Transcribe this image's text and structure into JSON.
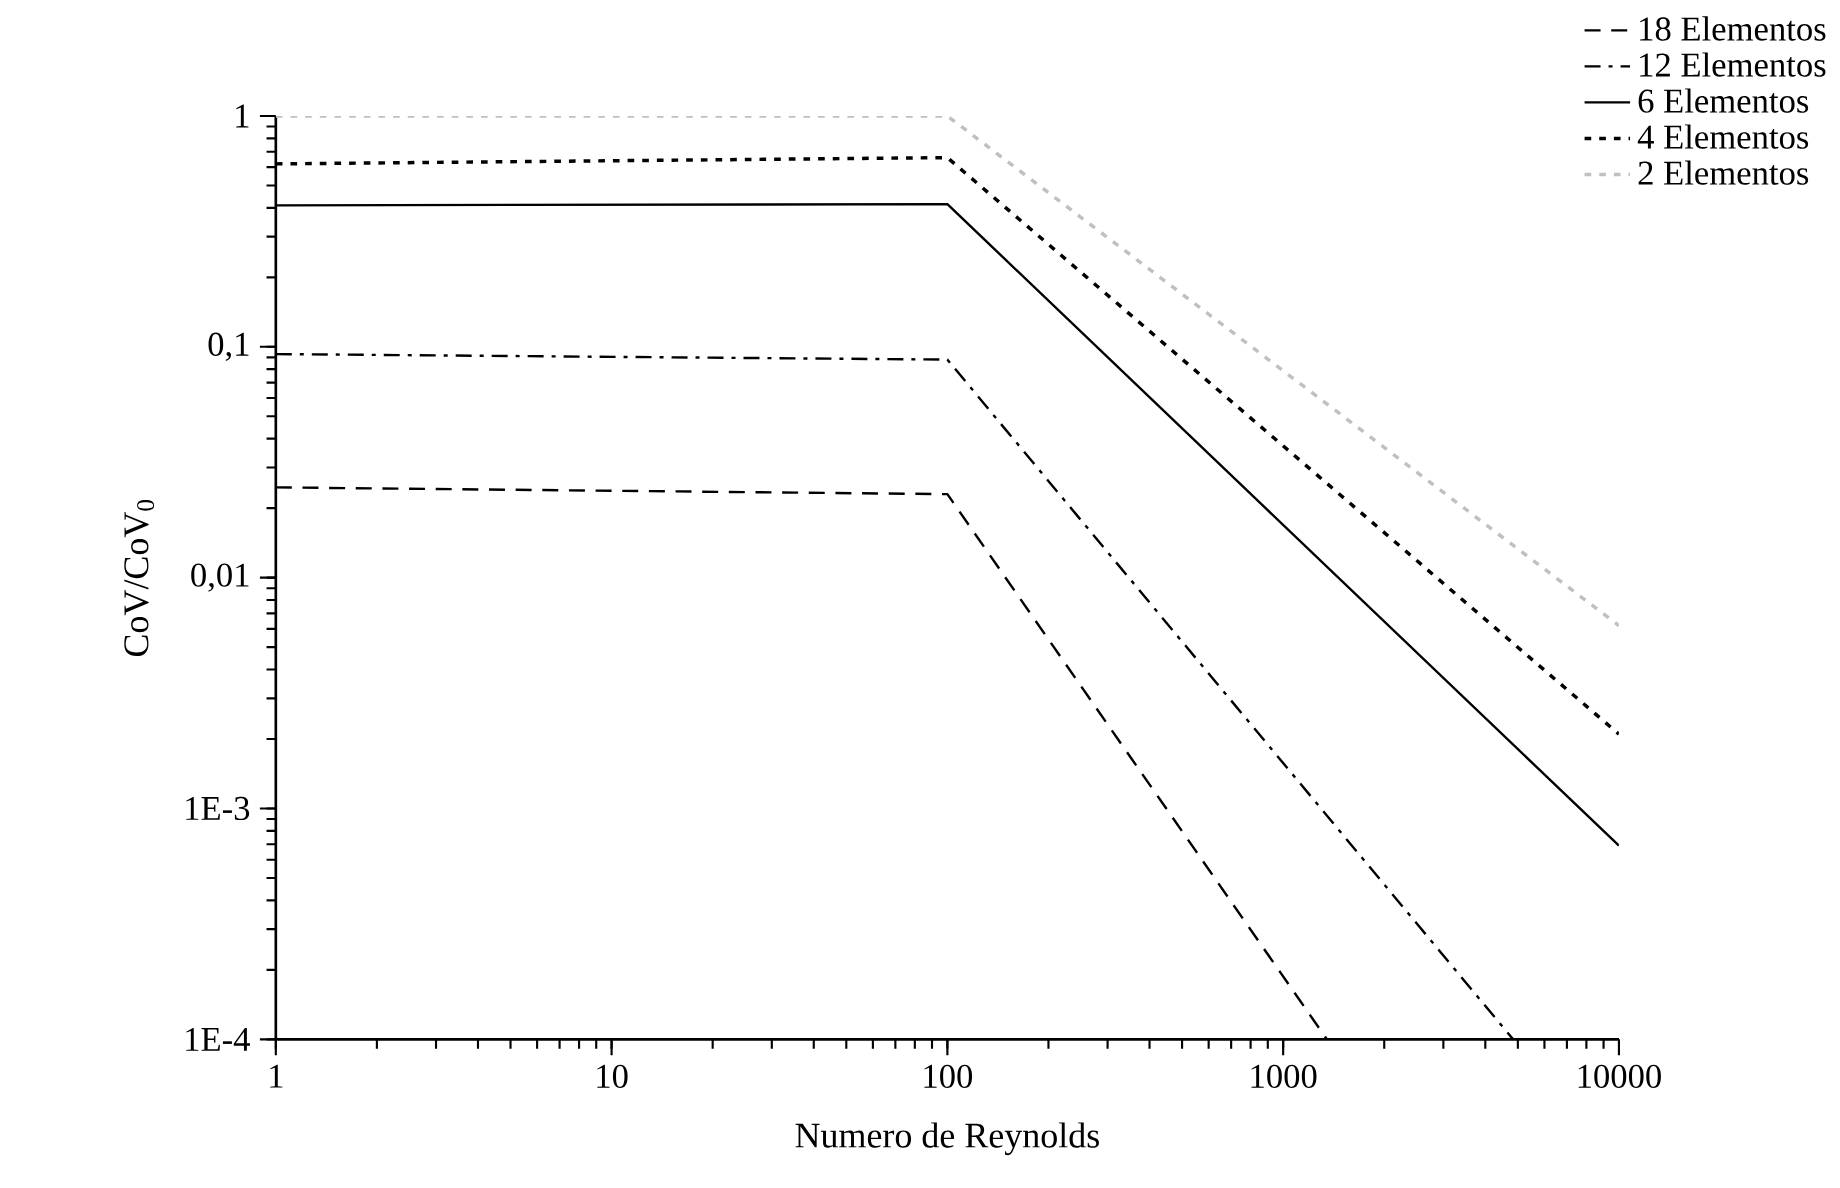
{
  "chart_data": {
    "type": "line",
    "xlabel": "Numero de Reynolds",
    "ylabel": "CoV/CoV$_{0}$",
    "log": "xy",
    "xlim": [
      1,
      10000
    ],
    "ylim": [
      0.0001,
      1
    ],
    "xticks": [
      1,
      10,
      100,
      1000,
      10000
    ],
    "yticks": [
      {
        "value": 0.0001,
        "label": "1E-4"
      },
      {
        "value": 0.001,
        "label": "1E-3"
      },
      {
        "value": 0.01,
        "label": "0,01"
      },
      {
        "value": 0.1,
        "label": "0,1"
      },
      1
    ],
    "legend": "top right",
    "series": [
      {
        "name": "18 Elementos",
        "color": "#000000",
        "line_style": "dashed",
        "x": [
          1,
          100,
          1350
        ],
        "values": [
          0.0246,
          0.023,
          0.0001
        ]
      },
      {
        "name": "12 Elementos",
        "color": "#000000",
        "line_style": "dashdot",
        "x": [
          1,
          100,
          4840
        ],
        "values": [
          0.093,
          0.088,
          0.0001
        ]
      },
      {
        "name": "6 Elementos",
        "color": "#000000",
        "line_style": "solid",
        "x": [
          1,
          100,
          10000
        ],
        "values": [
          0.41,
          0.415,
          0.00069
        ]
      },
      {
        "name": "4 Elementos",
        "color": "#000000",
        "line_style": "dotted",
        "x": [
          1,
          100,
          10000
        ],
        "values": [
          0.62,
          0.66,
          0.0021
        ]
      },
      {
        "name": "2 Elementos",
        "color": "#c0c0c0",
        "line_style": "dotted",
        "x": [
          1,
          100,
          10000
        ],
        "values": [
          1,
          1,
          0.0062
        ]
      }
    ]
  }
}
